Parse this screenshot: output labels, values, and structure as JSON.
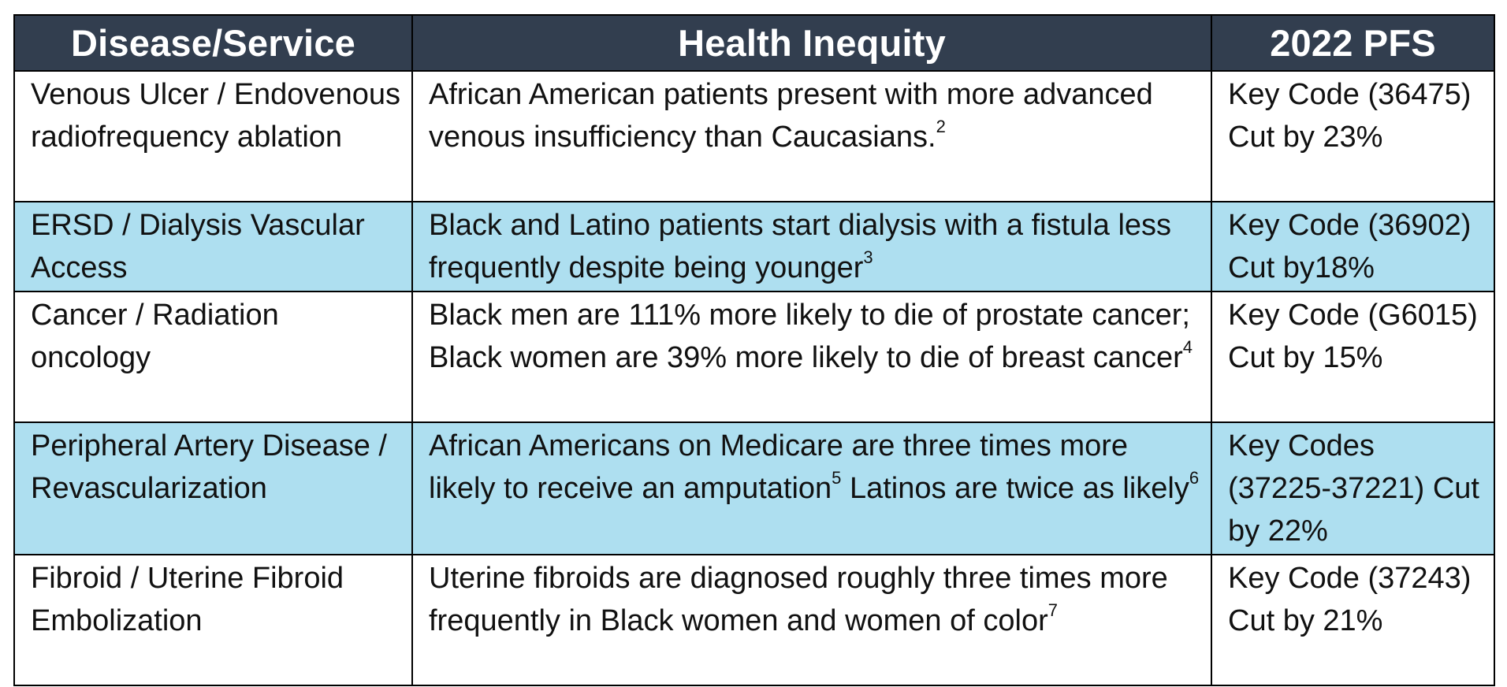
{
  "table": {
    "headers": [
      "Disease/Service",
      "Health Inequity",
      "2022 PFS"
    ],
    "rows": [
      {
        "disease": "Venous Ulcer / Endovenous radiofrequency ablation",
        "inequity": "African American patients present with more advanced venous insufficiency than Caucasians.",
        "inequity_sup": "2",
        "inequity_tail": "",
        "inequity_tail_sup": "",
        "pfs": "Key Code (36475) Cut by 23%",
        "row_color": "white"
      },
      {
        "disease": "ERSD / Dialysis Vascular Access",
        "inequity": "Black and Latino patients start dialysis with a fistula less frequently despite being younger",
        "inequity_sup": "3",
        "inequity_tail": "",
        "inequity_tail_sup": "",
        "pfs": "Key Code (36902) Cut by18%",
        "row_color": "blue"
      },
      {
        "disease": "Cancer / Radiation oncology",
        "inequity": "Black men are 111% more likely to die of prostate cancer; Black women are 39% more likely to die of breast cancer",
        "inequity_sup": "4",
        "inequity_tail": "",
        "inequity_tail_sup": "",
        "pfs": "Key Code (G6015) Cut by 15%",
        "row_color": "white"
      },
      {
        "disease": "Peripheral Artery Disease / Revascularization",
        "inequity": "African Americans on Medicare are three times more likely to receive an amputation",
        "inequity_sup": "5",
        "inequity_tail": " Latinos are twice as likely",
        "inequity_tail_sup": "6",
        "pfs": "Key Codes (37225-37221) Cut by 22%",
        "row_color": "blue"
      },
      {
        "disease": "Fibroid / Uterine Fibroid Embolization",
        "inequity": "Uterine fibroids are diagnosed roughly three times more frequently in Black women and women of color",
        "inequity_sup": "7",
        "inequity_tail": "",
        "inequity_tail_sup": "",
        "pfs": "Key Code (37243) Cut by 21%",
        "row_color": "white"
      }
    ]
  },
  "colors": {
    "header_bg": "#323e4f",
    "header_text": "#ffffff",
    "row_blue": "#aedff0",
    "row_white": "#ffffff",
    "border": "#000000"
  }
}
